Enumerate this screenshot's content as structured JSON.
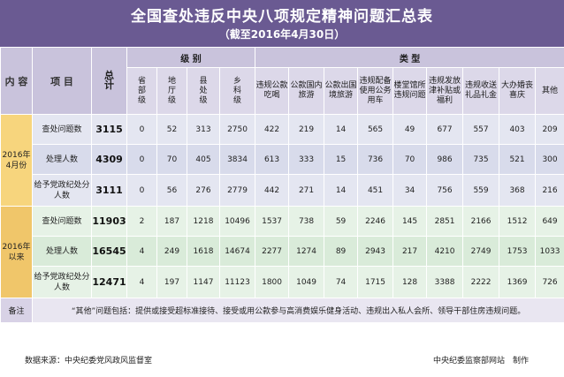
{
  "title": "全国查处违反中央八项规定精神问题汇总表",
  "subtitle": "（截至2016年4月30日）",
  "header": {
    "content": "内 容",
    "item": "项 目",
    "total": "总计",
    "level_group": "级 别",
    "type_group": "类 型",
    "levels": [
      "省部级",
      "地厅级",
      "县处级",
      "乡科级"
    ],
    "types": [
      "违规公款吃喝",
      "公款国内旅游",
      "公款出国境旅游",
      "违规配备使用公务用车",
      "楼堂馆所违规问题",
      "违规发放津补贴或福利",
      "违规收送礼品礼金",
      "大办婚丧喜庆",
      "其他"
    ]
  },
  "groups": [
    {
      "period": "2016年4月份",
      "rows": [
        {
          "item": "查处问题数",
          "total": "3115",
          "levels": [
            "0",
            "52",
            "313",
            "2750"
          ],
          "types": [
            "422",
            "219",
            "14",
            "565",
            "49",
            "677",
            "557",
            "403",
            "209"
          ]
        },
        {
          "item": "处理人数",
          "total": "4309",
          "levels": [
            "0",
            "70",
            "405",
            "3834"
          ],
          "types": [
            "613",
            "333",
            "15",
            "736",
            "70",
            "986",
            "735",
            "521",
            "300"
          ]
        },
        {
          "item": "给予党政纪处分人数",
          "total": "3111",
          "levels": [
            "0",
            "56",
            "276",
            "2779"
          ],
          "types": [
            "442",
            "271",
            "14",
            "451",
            "34",
            "756",
            "559",
            "368",
            "216"
          ]
        }
      ]
    },
    {
      "period": "2016年以来",
      "rows": [
        {
          "item": "查处问题数",
          "total": "11903",
          "levels": [
            "2",
            "187",
            "1218",
            "10496"
          ],
          "types": [
            "1537",
            "738",
            "59",
            "2246",
            "145",
            "2851",
            "2166",
            "1512",
            "649"
          ]
        },
        {
          "item": "处理人数",
          "total": "16545",
          "levels": [
            "4",
            "249",
            "1618",
            "14674"
          ],
          "types": [
            "2277",
            "1274",
            "89",
            "2943",
            "217",
            "4210",
            "2749",
            "1753",
            "1033"
          ]
        },
        {
          "item": "给予党政纪处分人数",
          "total": "12471",
          "levels": [
            "4",
            "197",
            "1147",
            "11123"
          ],
          "types": [
            "1800",
            "1049",
            "74",
            "1715",
            "128",
            "3388",
            "2222",
            "1369",
            "726"
          ]
        }
      ]
    }
  ],
  "note_label": "备注",
  "note_text": "“其他”问题包括：提供或接受超标准接待、接受或用公款参与高消费娱乐健身活动、违规出入私人会所、领导干部住房违规问题。",
  "footer": {
    "source": "数据来源：中央纪委党风政风监督室",
    "credit": "中央纪委监察部网站　制作"
  },
  "colors": {
    "banner": "#6a5a92",
    "period_cell": "#f5cf6c",
    "header": "#c9c3dc"
  }
}
